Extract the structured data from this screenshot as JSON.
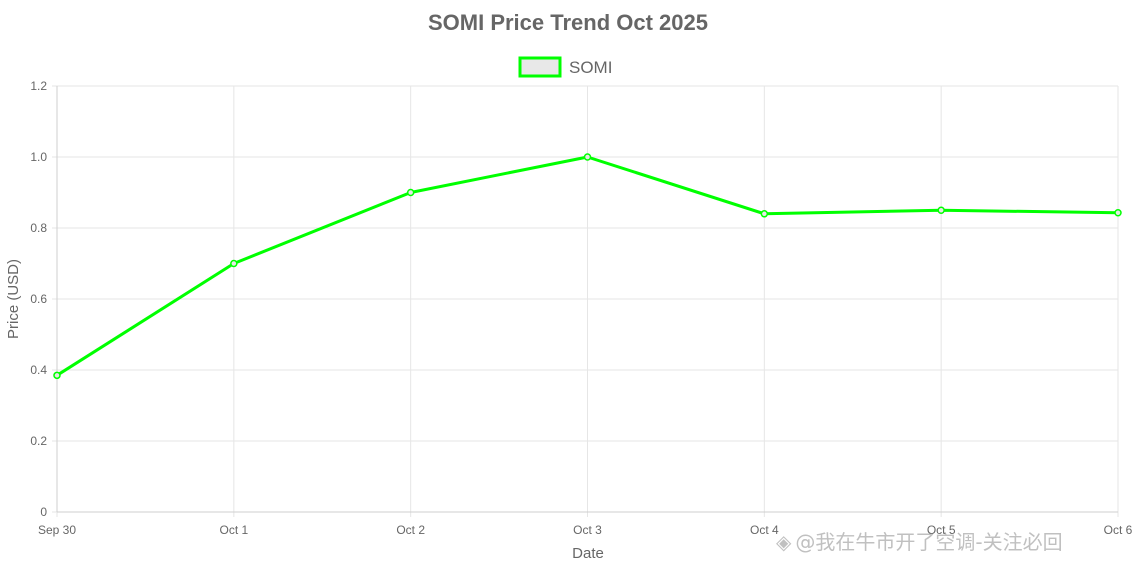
{
  "chart_data": {
    "type": "line",
    "title": "SOMI Price Trend Oct 2025",
    "xlabel": "Date",
    "ylabel": "Price (USD)",
    "categories": [
      "Sep 30",
      "Oct 1",
      "Oct 2",
      "Oct 3",
      "Oct 4",
      "Oct 5",
      "Oct 6"
    ],
    "series": [
      {
        "name": "SOMI",
        "values": [
          0.385,
          0.7,
          0.9,
          1.0,
          0.84,
          0.85,
          0.843
        ]
      }
    ],
    "ylim": [
      0,
      1.2
    ],
    "yticks": [
      0,
      0.2,
      0.4,
      0.6,
      0.8,
      1.0,
      1.2
    ],
    "ytick_labels": [
      "0",
      "0.2",
      "0.4",
      "0.6",
      "0.8",
      "1.0",
      "1.2"
    ],
    "grid": true,
    "legend_position": "top-center",
    "colors": {
      "line": "#00ff00",
      "legend_fill": "#e8e8e8",
      "grid": "#e6e6e6",
      "text": "#666666"
    }
  },
  "watermark": {
    "text": "@我在牛市开了空调-关注必回",
    "icon": "binance-diamond-icon"
  }
}
